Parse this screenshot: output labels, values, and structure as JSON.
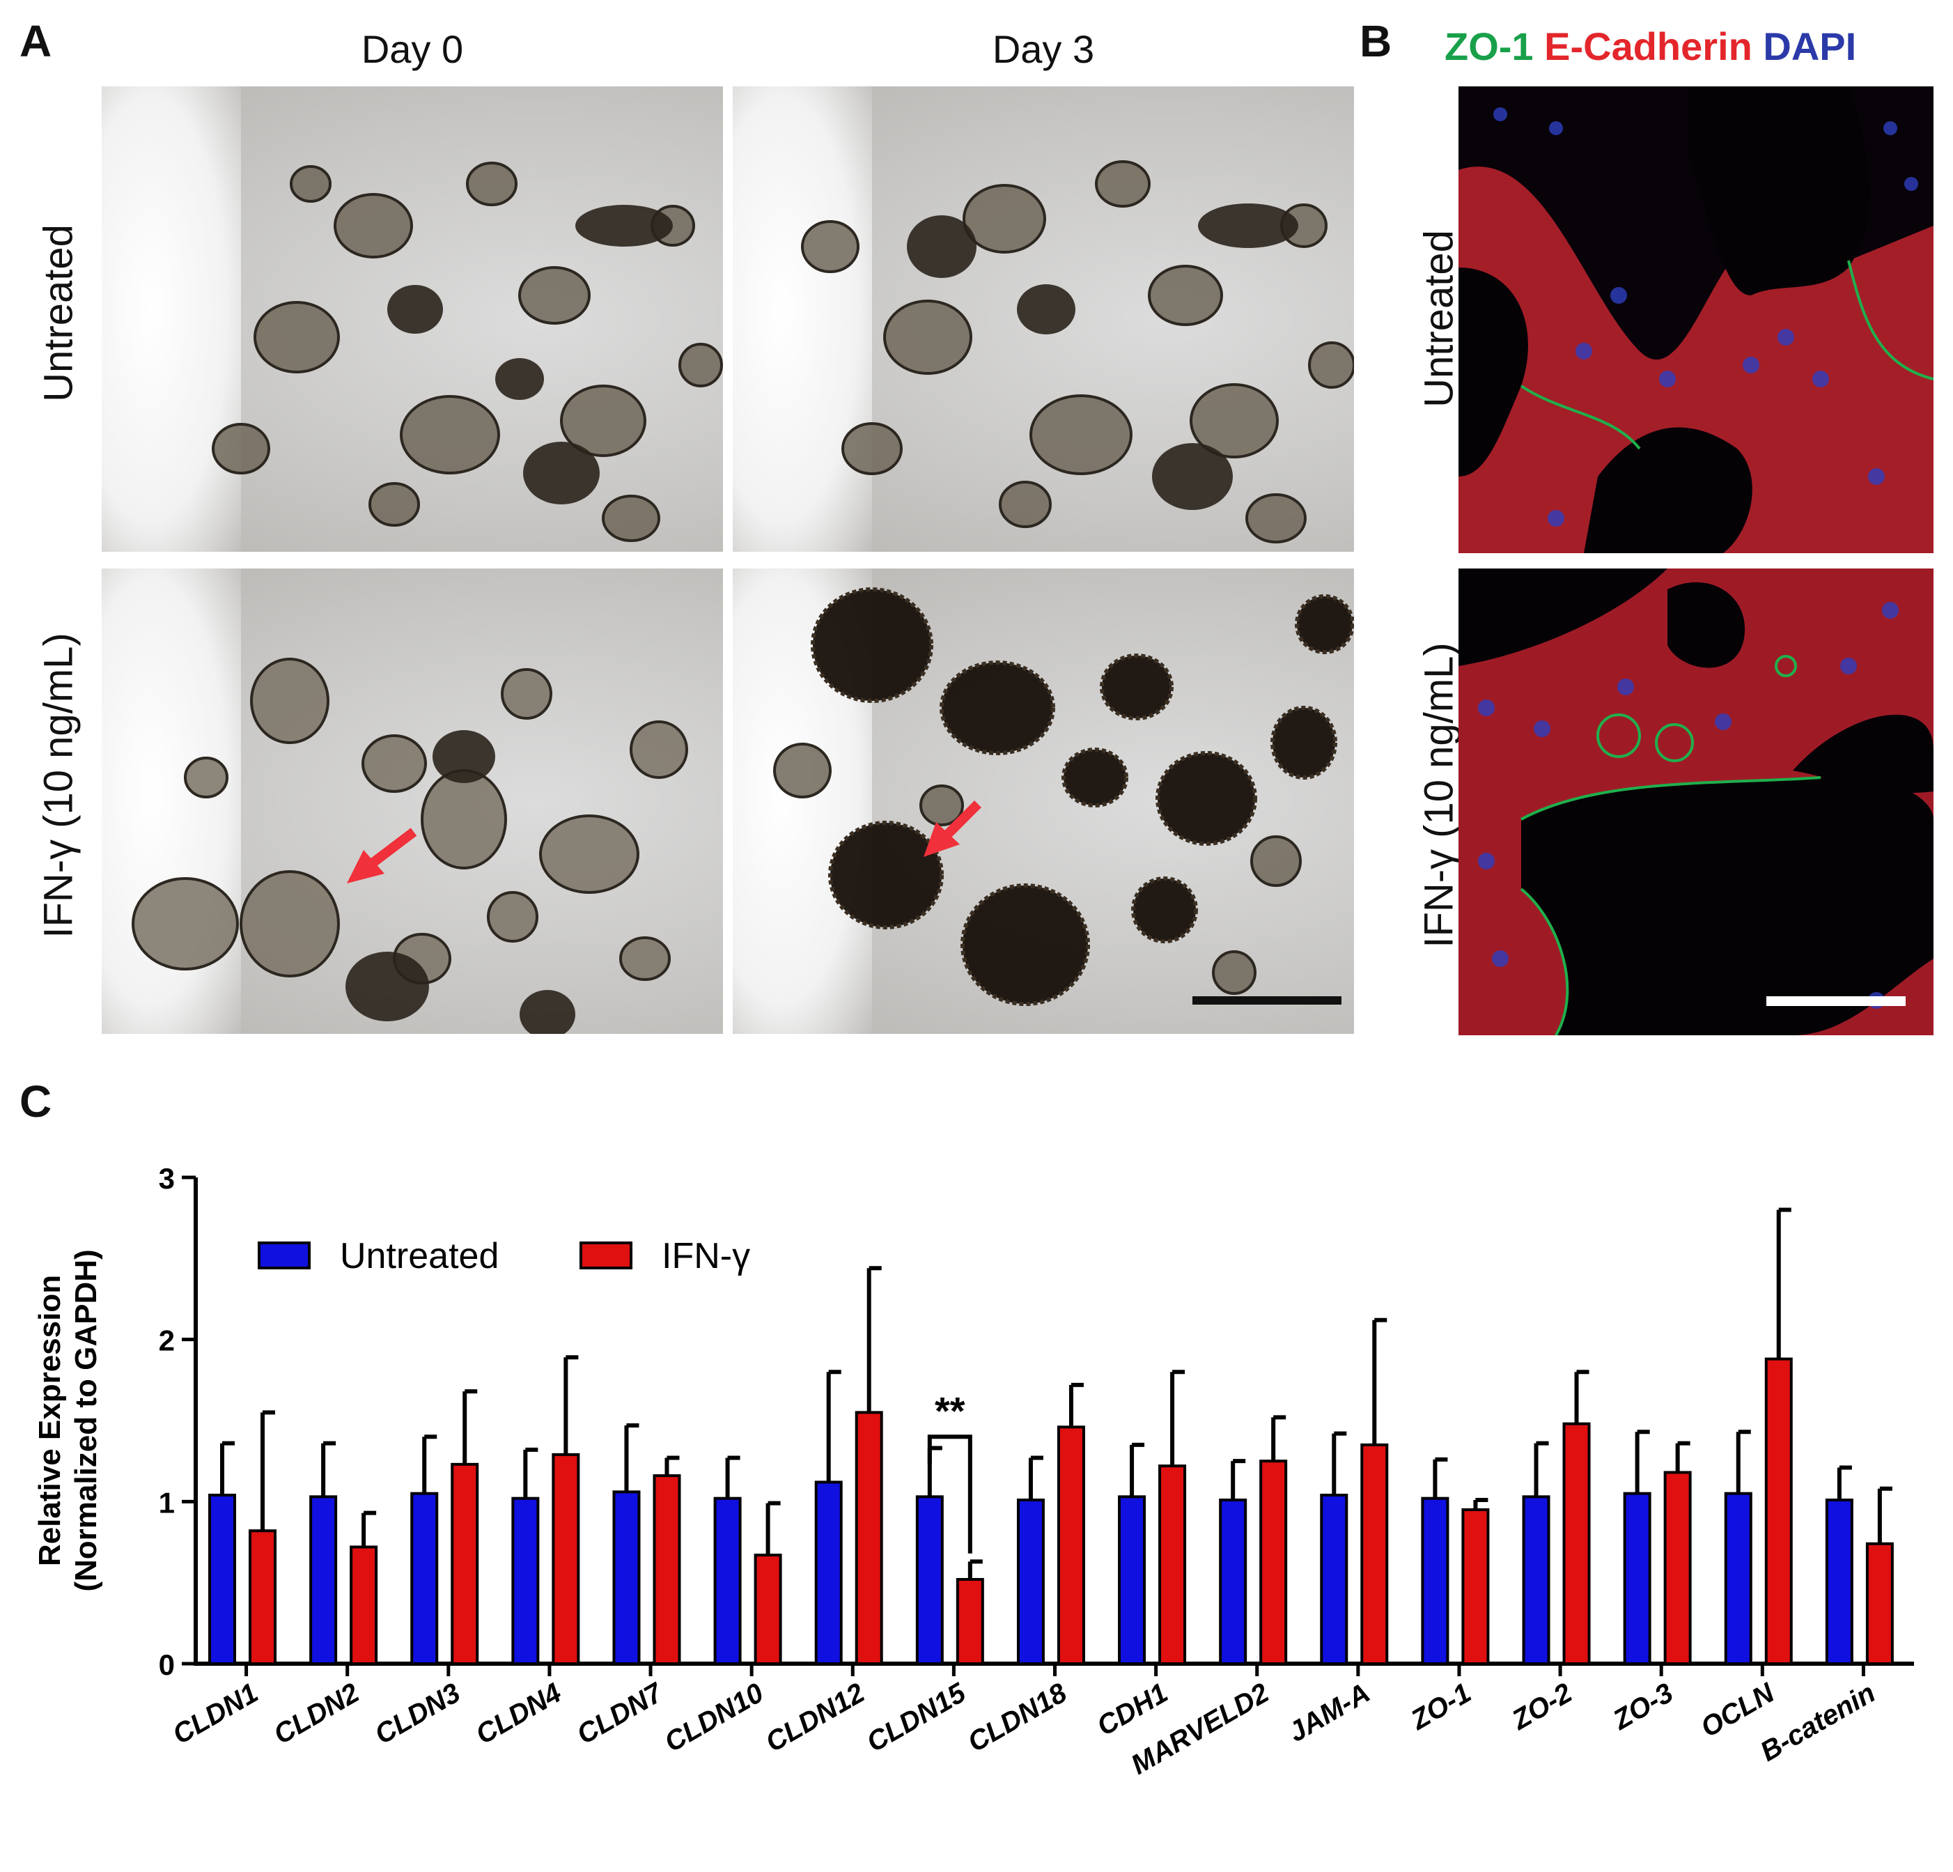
{
  "panelA": {
    "letter": "A",
    "col_titles": [
      "Day 0",
      "Day 3"
    ],
    "row_labels": [
      "Untreated",
      "IFN-γ (10 ng/mL)"
    ]
  },
  "panelB": {
    "letter": "B",
    "stain_zo1": "ZO-1",
    "stain_ecad": "E-Cadherin",
    "stain_dapi": "DAPI",
    "row_labels": [
      "Untreated",
      "IFN-γ (10 ng/mL)"
    ]
  },
  "panelC": {
    "letter": "C",
    "significance": "**"
  },
  "colors": {
    "untreated": "#1010e0",
    "ifn": "#e01010",
    "zo1": "#19a04a",
    "ecad": "#e3262b",
    "dapi": "#2b3aa8",
    "arrow": "#f0303a"
  },
  "chart_data": {
    "type": "bar",
    "ylabel": "Relative Expression\n(Normalized to GAPDH)",
    "ylim": [
      0,
      3
    ],
    "yticks": [
      "0",
      "1",
      "2",
      "3"
    ],
    "legend_position": "top-left",
    "categories": [
      "CLDN1",
      "CLDN2",
      "CLDN3",
      "CLDN4",
      "CLDN7",
      "CLDN10",
      "CLDN12",
      "CLDN15",
      "CLDN18",
      "CDH1",
      "MARVELD2",
      "JAM-A",
      "ZO-1",
      "ZO-2",
      "ZO-3",
      "OCLN",
      "B-catenin"
    ],
    "series": [
      {
        "name": "Untreated",
        "values": [
          1.04,
          1.03,
          1.05,
          1.02,
          1.06,
          1.02,
          1.12,
          1.03,
          1.01,
          1.03,
          1.01,
          1.04,
          1.02,
          1.03,
          1.05,
          1.05,
          1.01
        ],
        "error": [
          0.32,
          0.33,
          0.35,
          0.3,
          0.41,
          0.25,
          0.68,
          0.3,
          0.26,
          0.32,
          0.24,
          0.38,
          0.24,
          0.33,
          0.38,
          0.38,
          0.2
        ]
      },
      {
        "name": "IFN-γ",
        "values": [
          0.82,
          0.72,
          1.23,
          1.29,
          1.16,
          0.67,
          1.55,
          0.52,
          1.46,
          1.22,
          1.25,
          1.35,
          0.95,
          1.48,
          1.18,
          1.88,
          0.74
        ],
        "error": [
          0.73,
          0.21,
          0.45,
          0.6,
          0.11,
          0.32,
          0.89,
          0.11,
          0.26,
          0.58,
          0.27,
          0.77,
          0.06,
          0.32,
          0.18,
          0.92,
          0.34
        ]
      }
    ],
    "annotation": {
      "text": "**",
      "category": "CLDN15"
    }
  }
}
